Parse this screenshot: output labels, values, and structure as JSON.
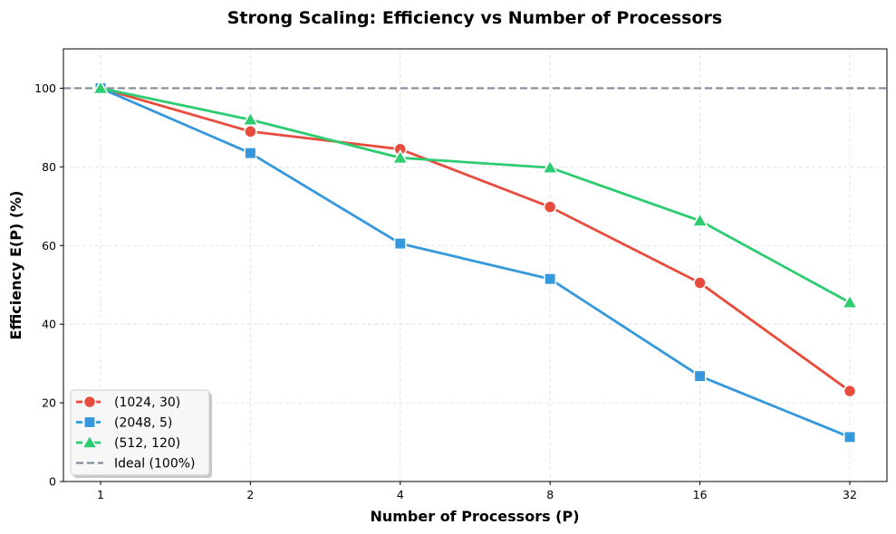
{
  "chart_data": {
    "type": "line",
    "title": "Strong Scaling: Efficiency vs Number of Processors",
    "xlabel": "Number of Processors (P)",
    "ylabel": "Efficiency E(P) (%)",
    "x_scale": "log2",
    "x": [
      1,
      2,
      4,
      8,
      16,
      32
    ],
    "x_tick_labels": [
      "1",
      "2",
      "4",
      "8",
      "16",
      "32"
    ],
    "ylim": [
      0,
      110
    ],
    "y_ticks": [
      0,
      20,
      40,
      60,
      80,
      100
    ],
    "y_tick_labels": [
      "0",
      "20",
      "40",
      "60",
      "80",
      "100"
    ],
    "grid": true,
    "legend_position": "lower-left",
    "series": [
      {
        "name": "(1024, 30)",
        "color": "#e74c3c",
        "marker": "circle",
        "values": [
          100,
          89,
          84.5,
          69.8,
          50.5,
          23
        ]
      },
      {
        "name": "(2048, 5)",
        "color": "#3498db",
        "marker": "square",
        "values": [
          100,
          83.5,
          60.5,
          51.5,
          26.8,
          11.3
        ]
      },
      {
        "name": "(512, 120)",
        "color": "#2ecc71",
        "marker": "triangle",
        "values": [
          100,
          92,
          82.3,
          79.8,
          66.3,
          45.5
        ]
      }
    ],
    "reference_line": {
      "name": "Ideal (100%)",
      "value": 100,
      "color": "#7f8c9d",
      "style": "dashed"
    }
  }
}
